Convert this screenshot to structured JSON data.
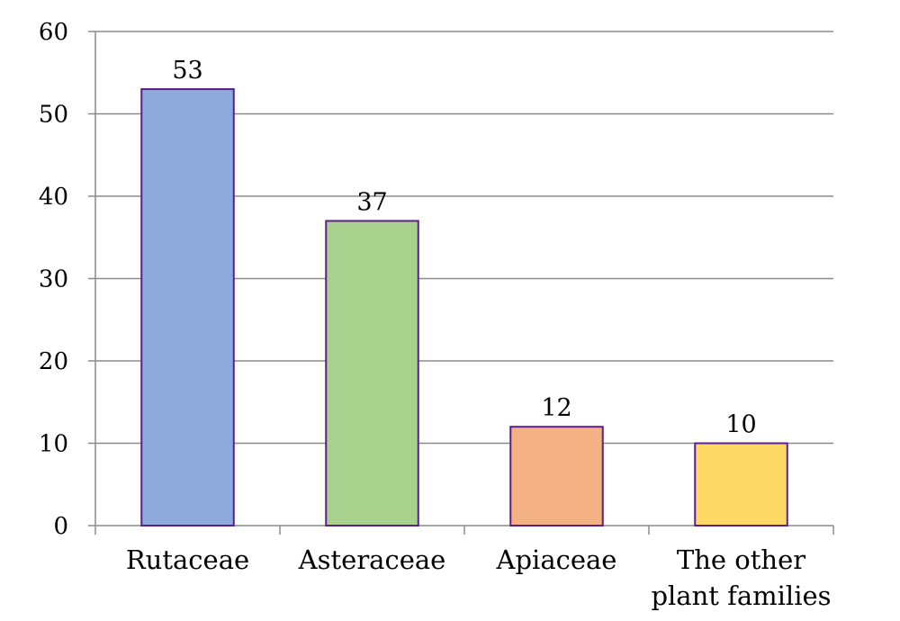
{
  "chart_data": {
    "type": "bar",
    "title": "",
    "xlabel": "",
    "ylabel": "",
    "categories": [
      [
        "Rutaceae"
      ],
      [
        "Asteraceae"
      ],
      [
        "Apiaceae"
      ],
      [
        "The other",
        "plant families"
      ]
    ],
    "values": [
      53,
      37,
      12,
      10
    ],
    "data_labels": [
      "53",
      "37",
      "12",
      "10"
    ],
    "ylim": [
      0,
      60
    ],
    "yticks": [
      0,
      10,
      20,
      30,
      40,
      50,
      60
    ],
    "ytick_labels": [
      "0",
      "10",
      "20",
      "30",
      "40",
      "50",
      "60"
    ],
    "grid": true,
    "legend": "none",
    "colors": {
      "bars": [
        "#8EA9DB",
        "#A9D18E",
        "#F4B183",
        "#FFD966"
      ],
      "bar_edge": "#5B1E8C",
      "grid": "#8C8C8C",
      "axis": "#8C8C8C"
    }
  }
}
